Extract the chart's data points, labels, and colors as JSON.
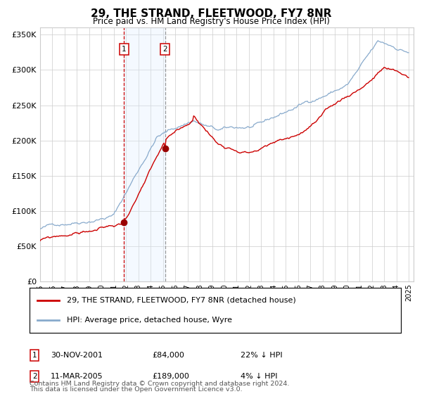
{
  "title": "29, THE STRAND, FLEETWOOD, FY7 8NR",
  "subtitle": "Price paid vs. HM Land Registry's House Price Index (HPI)",
  "legend_line1": "29, THE STRAND, FLEETWOOD, FY7 8NR (detached house)",
  "legend_line2": "HPI: Average price, detached house, Wyre",
  "sale1_date": "30-NOV-2001",
  "sale1_price": 84000,
  "sale1_hpi_diff": "22% ↓ HPI",
  "sale2_date": "11-MAR-2005",
  "sale2_price": 189000,
  "sale2_hpi_diff": "4% ↓ HPI",
  "footnote1": "Contains HM Land Registry data © Crown copyright and database right 2024.",
  "footnote2": "This data is licensed under the Open Government Licence v3.0.",
  "ylim_max": 360000,
  "line_color_property": "#cc0000",
  "line_color_hpi": "#88aacc",
  "shaded_color": "#ddeeff",
  "vline1_color": "#cc0000",
  "vline2_color": "#999999",
  "grid_color": "#cccccc",
  "background_color": "#ffffff"
}
